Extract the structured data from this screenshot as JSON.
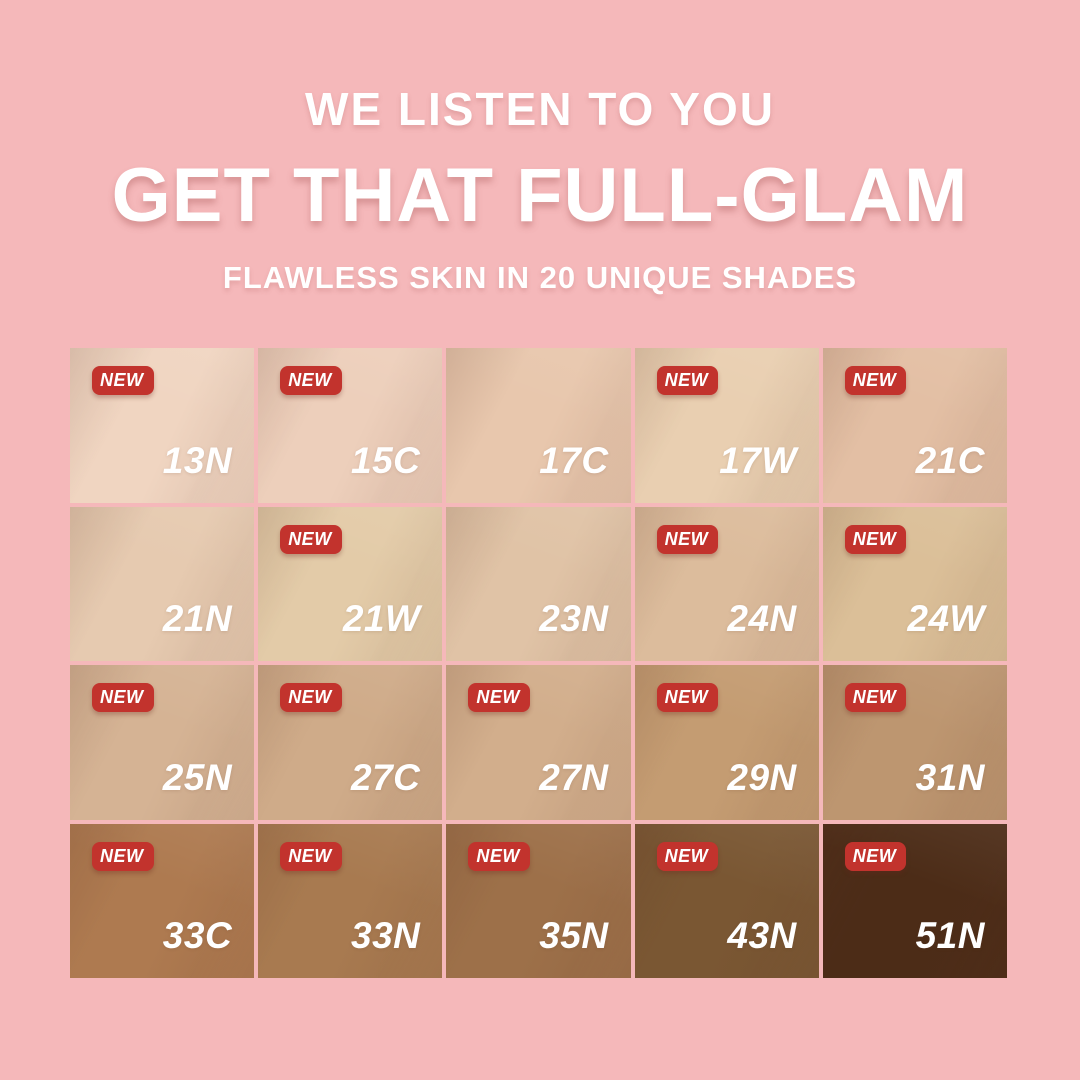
{
  "page": {
    "background_color": "#f5b8ba"
  },
  "header": {
    "line1": "WE LISTEN TO YOU",
    "line2": "GET THAT FULL-GLAM",
    "line3": "FLAWLESS SKIN IN 20 UNIQUE SHADES",
    "text_color": "#ffffff"
  },
  "badge": {
    "label": "NEW",
    "background_color": "#c2332d",
    "text_color": "#ffffff"
  },
  "shade_grid": {
    "rows": 4,
    "cols": 5,
    "label_color": "#ffffff",
    "shades": [
      {
        "code": "13N",
        "color": "#f0d5c1",
        "new": true
      },
      {
        "code": "15C",
        "color": "#edcfbb",
        "new": true
      },
      {
        "code": "17C",
        "color": "#e8c7ad",
        "new": false
      },
      {
        "code": "17W",
        "color": "#e9cfb1",
        "new": true
      },
      {
        "code": "21C",
        "color": "#e3bfa4",
        "new": true
      },
      {
        "code": "21N",
        "color": "#e6cab0",
        "new": false
      },
      {
        "code": "21W",
        "color": "#e3cba8",
        "new": true
      },
      {
        "code": "23N",
        "color": "#e0c3a6",
        "new": false
      },
      {
        "code": "24N",
        "color": "#dcbc9c",
        "new": true
      },
      {
        "code": "24W",
        "color": "#dbbf98",
        "new": true
      },
      {
        "code": "25N",
        "color": "#d5b394",
        "new": true
      },
      {
        "code": "27C",
        "color": "#cfab89",
        "new": true
      },
      {
        "code": "27N",
        "color": "#d2ae8c",
        "new": true
      },
      {
        "code": "29N",
        "color": "#c49c72",
        "new": true
      },
      {
        "code": "31N",
        "color": "#bd9670",
        "new": true
      },
      {
        "code": "33C",
        "color": "#ae7a50",
        "new": true
      },
      {
        "code": "33N",
        "color": "#a87a50",
        "new": true
      },
      {
        "code": "35N",
        "color": "#9d7049",
        "new": true
      },
      {
        "code": "43N",
        "color": "#7a5733",
        "new": true
      },
      {
        "code": "51N",
        "color": "#4c2c17",
        "new": true
      }
    ]
  }
}
